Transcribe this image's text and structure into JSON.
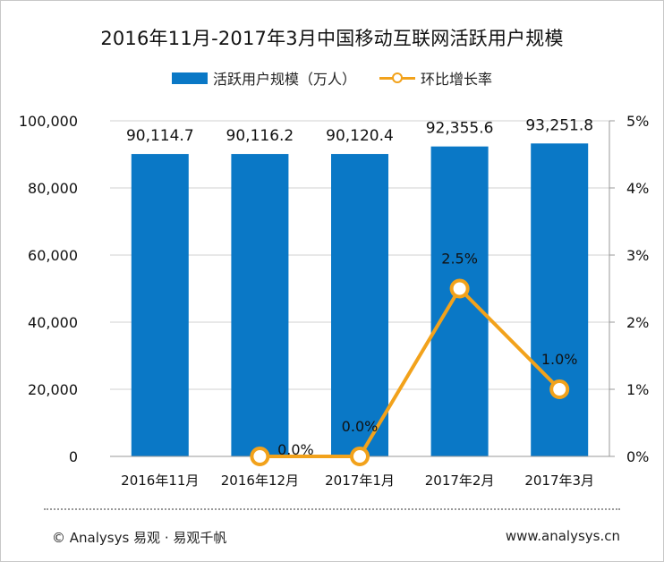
{
  "title": "2016年11月-2017年3月中国移动互联网活跃用户规模",
  "legend": {
    "bar": "活跃用户规模（万人）",
    "line": "环比增长率"
  },
  "colors": {
    "bar": "#0a78c6",
    "line": "#f2a21b",
    "grid": "#d0d0d0"
  },
  "chart_data": {
    "type": "bar",
    "title": "2016年11月-2017年3月中国移动互联网活跃用户规模",
    "categories": [
      "2016年11月",
      "2016年12月",
      "2017年1月",
      "2017年2月",
      "2017年3月"
    ],
    "series": [
      {
        "name": "活跃用户规模（万人）",
        "type": "bar",
        "axis": "left",
        "values": [
          90114.7,
          90116.2,
          90120.4,
          92355.6,
          93251.8
        ],
        "labels": [
          "90,114.7",
          "90,116.2",
          "90,120.4",
          "92,355.6",
          "93,251.8"
        ]
      },
      {
        "name": "环比增长率",
        "type": "line",
        "axis": "right",
        "values": [
          null,
          0.0,
          0.0,
          2.5,
          1.0
        ],
        "labels": [
          "",
          "0.0%",
          "0.0%",
          "2.5%",
          "1.0%"
        ]
      }
    ],
    "left_axis": {
      "ylim": [
        0,
        100000
      ],
      "ticks": [
        0,
        20000,
        40000,
        60000,
        80000,
        100000
      ],
      "tick_labels": [
        "0",
        "20,000",
        "40,000",
        "60,000",
        "80,000",
        "100,000"
      ]
    },
    "right_axis": {
      "ylim": [
        0,
        5
      ],
      "ticks": [
        0,
        1,
        2,
        3,
        4,
        5
      ],
      "tick_labels": [
        "0%",
        "1%",
        "2%",
        "3%",
        "4%",
        "5%"
      ]
    },
    "grid": true,
    "legend_position": "top-center"
  },
  "footer": {
    "left": "© Analysys 易观 · 易观千帆",
    "right": "www.analysys.cn"
  }
}
